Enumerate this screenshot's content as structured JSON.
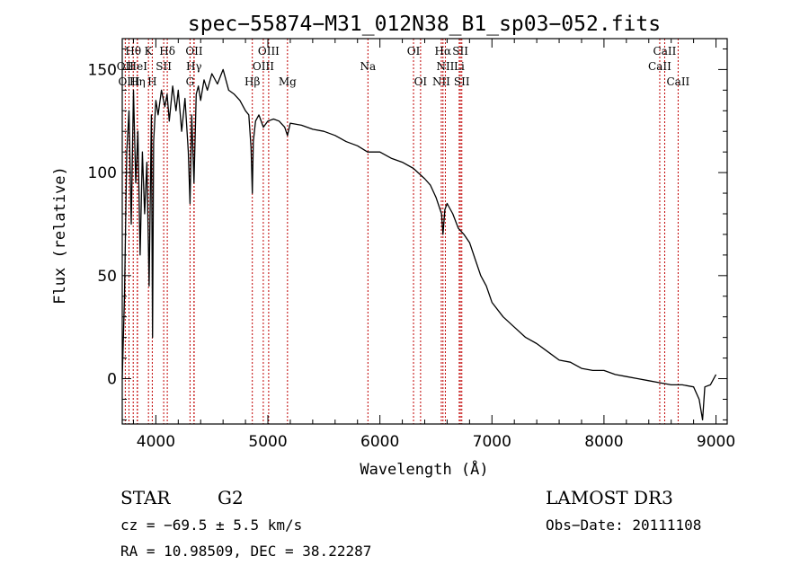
{
  "chart_data": {
    "type": "line",
    "title": "spec−55874−M31_012N38_B1_sp03−052.fits",
    "xlabel": "Wavelength (Å)",
    "ylabel": "Flux (relative)",
    "xlim": [
      3700,
      9100
    ],
    "ylim": [
      -22,
      165
    ],
    "xticks": [
      4000,
      5000,
      6000,
      7000,
      8000,
      9000
    ],
    "yticks": [
      0,
      50,
      100,
      150
    ],
    "series": [
      {
        "name": "flux",
        "x": [
          3700,
          3720,
          3740,
          3760,
          3780,
          3800,
          3820,
          3840,
          3860,
          3880,
          3900,
          3920,
          3940,
          3960,
          3970,
          3980,
          4000,
          4020,
          4050,
          4080,
          4100,
          4120,
          4150,
          4180,
          4200,
          4230,
          4260,
          4290,
          4305,
          4320,
          4340,
          4360,
          4380,
          4400,
          4430,
          4460,
          4500,
          4550,
          4600,
          4650,
          4700,
          4750,
          4800,
          4830,
          4850,
          4861,
          4870,
          4890,
          4920,
          4960,
          5000,
          5050,
          5100,
          5150,
          5175,
          5200,
          5300,
          5400,
          5500,
          5600,
          5700,
          5800,
          5890,
          5950,
          6000,
          6100,
          6200,
          6300,
          6400,
          6450,
          6500,
          6550,
          6563,
          6580,
          6600,
          6650,
          6700,
          6750,
          6800,
          6850,
          6900,
          6950,
          7000,
          7100,
          7200,
          7300,
          7400,
          7500,
          7600,
          7700,
          7800,
          7900,
          8000,
          8100,
          8200,
          8300,
          8400,
          8500,
          8600,
          8700,
          8800,
          8850,
          8880,
          8900,
          8950,
          9000
        ],
        "y": [
          0,
          40,
          110,
          130,
          75,
          140,
          95,
          120,
          60,
          110,
          80,
          105,
          45,
          128,
          20,
          115,
          135,
          128,
          140,
          132,
          138,
          125,
          142,
          130,
          140,
          120,
          136,
          110,
          85,
          128,
          95,
          138,
          142,
          135,
          145,
          140,
          148,
          143,
          150,
          140,
          138,
          135,
          130,
          128,
          112,
          90,
          115,
          125,
          128,
          122,
          125,
          126,
          125,
          122,
          118,
          124,
          123,
          121,
          120,
          118,
          115,
          113,
          110,
          110,
          110,
          107,
          105,
          102,
          97,
          94,
          88,
          80,
          70,
          82,
          85,
          80,
          73,
          70,
          66,
          58,
          50,
          45,
          37,
          30,
          25,
          20,
          17,
          13,
          9,
          8,
          5,
          4,
          4,
          2,
          1,
          0,
          -1,
          -2,
          -3,
          -3,
          -4,
          -10,
          -20,
          -4,
          -3,
          2
        ]
      }
    ],
    "spectral_lines": [
      {
        "name": "Hθ",
        "wavelength": 3798,
        "row": 1
      },
      {
        "name": "K",
        "wavelength": 3934,
        "row": 1
      },
      {
        "name": "Hδ",
        "wavelength": 4102,
        "row": 1
      },
      {
        "name": "OII",
        "wavelength": 4342,
        "row": 1
      },
      {
        "name": "OIII",
        "wavelength": 5007,
        "row": 1
      },
      {
        "name": "OI",
        "wavelength": 6300,
        "row": 1
      },
      {
        "name": "Hα",
        "wavelength": 6563,
        "row": 1
      },
      {
        "name": "SII",
        "wavelength": 6718,
        "row": 1
      },
      {
        "name": "CaII",
        "wavelength": 8542,
        "row": 1
      },
      {
        "name": "OII",
        "wavelength": 3727,
        "row": 2
      },
      {
        "name": "HeI",
        "wavelength": 3835,
        "row": 2
      },
      {
        "name": "SII",
        "wavelength": 4070,
        "row": 2
      },
      {
        "name": "Hγ",
        "wavelength": 4340,
        "row": 2
      },
      {
        "name": "OIII",
        "wavelength": 4959,
        "row": 2
      },
      {
        "name": "Na",
        "wavelength": 5893,
        "row": 2
      },
      {
        "name": "NII",
        "wavelength": 6584,
        "row": 2
      },
      {
        "name": "Li",
        "wavelength": 6708,
        "row": 2
      },
      {
        "name": "CaII",
        "wavelength": 8498,
        "row": 2
      },
      {
        "name": "OIII",
        "wavelength": 3760,
        "row": 3
      },
      {
        "name": "Hη",
        "wavelength": 3835,
        "row": 3
      },
      {
        "name": "H",
        "wavelength": 3968,
        "row": 3
      },
      {
        "name": "G",
        "wavelength": 4305,
        "row": 3
      },
      {
        "name": "Hβ",
        "wavelength": 4861,
        "row": 3
      },
      {
        "name": "Mg",
        "wavelength": 5175,
        "row": 3
      },
      {
        "name": "OI",
        "wavelength": 6363,
        "row": 3
      },
      {
        "name": "NII",
        "wavelength": 6548,
        "row": 3
      },
      {
        "name": "SII",
        "wavelength": 6731,
        "row": 3
      },
      {
        "name": "CaII",
        "wavelength": 8662,
        "row": 3
      }
    ]
  },
  "info": {
    "object_type": "STAR",
    "subclass": "G2",
    "survey": "LAMOST DR3",
    "redshift": "cz = −69.5 ± 5.5 km/s",
    "obs_date": "Obs−Date: 20111108",
    "coords": "RA =  10.98509, DEC =  38.22287"
  },
  "colors": {
    "spectrum": "#000000",
    "line_marker": "#c00000",
    "axes": "#000000",
    "background": "#ffffff"
  }
}
